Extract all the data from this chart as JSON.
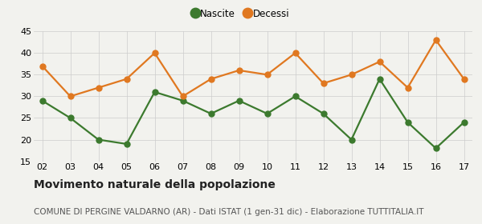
{
  "years": [
    "02",
    "03",
    "04",
    "05",
    "06",
    "07",
    "08",
    "09",
    "10",
    "11",
    "12",
    "13",
    "14",
    "15",
    "16",
    "17"
  ],
  "nascite": [
    29,
    25,
    20,
    19,
    31,
    29,
    26,
    29,
    26,
    30,
    26,
    20,
    34,
    24,
    18,
    24
  ],
  "decessi": [
    37,
    30,
    32,
    34,
    40,
    30,
    34,
    36,
    35,
    40,
    33,
    35,
    38,
    32,
    43,
    34
  ],
  "nascite_color": "#3c7a2e",
  "decessi_color": "#e07820",
  "background_color": "#f2f2ee",
  "ylim": [
    15,
    45
  ],
  "yticks": [
    15,
    20,
    25,
    30,
    35,
    40,
    45
  ],
  "title": "Movimento naturale della popolazione",
  "subtitle": "COMUNE DI PERGINE VALDARNO (AR) - Dati ISTAT (1 gen-31 dic) - Elaborazione TUTTITALIA.IT",
  "legend_nascite": "Nascite",
  "legend_decessi": "Decessi",
  "title_fontsize": 10,
  "subtitle_fontsize": 7.5,
  "tick_fontsize": 8,
  "legend_fontsize": 8.5,
  "marker_size": 5,
  "line_width": 1.6
}
